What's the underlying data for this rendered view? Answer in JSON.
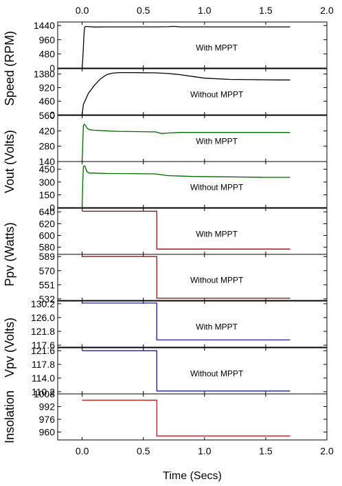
{
  "chart_data": {
    "type": "line",
    "xlabel": "Time (Secs)",
    "xlim": [
      -0.2,
      2.0
    ],
    "xticks": [
      0.0,
      0.5,
      1.0,
      1.5,
      2.0
    ],
    "xtick_labels": [
      "0.0",
      "0.5",
      "1.0",
      "1.5",
      "2.0"
    ],
    "ylabels": [
      {
        "text": "Speed (RPM)",
        "panels": [
          0,
          1
        ]
      },
      {
        "text": "Vout (Volts)",
        "panels": [
          2,
          3
        ]
      },
      {
        "text": "Ppv (Watts)",
        "panels": [
          4,
          5
        ]
      },
      {
        "text": "Vpv (Volts)",
        "panels": [
          6,
          7
        ]
      },
      {
        "text": "Insolation",
        "panels": [
          8
        ]
      }
    ],
    "panels": [
      {
        "annotation": "With MPPT",
        "ylim": [
          0,
          1560
        ],
        "yticks": [
          0,
          480,
          960,
          1440
        ],
        "ytick_labels": [
          "0",
          "480",
          "960",
          "1440"
        ],
        "color": "#000000",
        "x": [
          0.0,
          0.005,
          0.01,
          0.015,
          0.02,
          0.03,
          0.06,
          0.1,
          0.2,
          0.4,
          0.6,
          0.7,
          0.75,
          0.8,
          1.0,
          1.2,
          1.5,
          1.7
        ],
        "y": [
          0,
          300,
          700,
          1150,
          1380,
          1410,
          1400,
          1390,
          1395,
          1395,
          1395,
          1400,
          1410,
          1395,
          1395,
          1395,
          1395,
          1395
        ]
      },
      {
        "annotation": "Without MPPT",
        "ylim": [
          0,
          1560
        ],
        "yticks": [
          0,
          460,
          920,
          1380
        ],
        "ytick_labels": [
          "0",
          "460",
          "920",
          "1380"
        ],
        "color": "#000000",
        "x": [
          0.0,
          0.01,
          0.03,
          0.05,
          0.1,
          0.15,
          0.2,
          0.25,
          0.3,
          0.4,
          0.5,
          0.6,
          0.7,
          0.8,
          0.9,
          1.0,
          1.2,
          1.4,
          1.6,
          1.7
        ],
        "y": [
          0,
          350,
          530,
          720,
          1000,
          1220,
          1360,
          1410,
          1430,
          1430,
          1425,
          1420,
          1400,
          1360,
          1300,
          1240,
          1200,
          1190,
          1180,
          1180
        ]
      },
      {
        "annotation": "With MPPT",
        "ylim": [
          140,
          560
        ],
        "yticks": [
          140,
          280,
          420,
          560
        ],
        "ytick_labels": [
          "140",
          "280",
          "420",
          "560"
        ],
        "color": "#006400",
        "x": [
          0.0,
          0.005,
          0.01,
          0.02,
          0.04,
          0.06,
          0.1,
          0.2,
          0.3,
          0.5,
          0.6,
          0.65,
          0.7,
          0.8,
          1.0,
          1.2,
          1.5,
          1.7
        ],
        "y": [
          140,
          300,
          470,
          480,
          445,
          430,
          425,
          420,
          415,
          412,
          410,
          395,
          400,
          405,
          405,
          405,
          405,
          405
        ]
      },
      {
        "annotation": "Without MPPT",
        "ylim": [
          0,
          540
        ],
        "yticks": [
          0,
          150,
          300,
          450
        ],
        "ytick_labels": [
          "0",
          "150",
          "300",
          "450"
        ],
        "color": "#006400",
        "x": [
          0.0,
          0.005,
          0.01,
          0.02,
          0.04,
          0.06,
          0.1,
          0.2,
          0.4,
          0.6,
          0.7,
          0.9,
          1.2,
          1.5,
          1.7
        ],
        "y": [
          0,
          300,
          480,
          490,
          420,
          405,
          405,
          400,
          398,
          395,
          375,
          365,
          360,
          355,
          355
        ]
      },
      {
        "annotation": "With MPPT",
        "ylim": [
          568,
          646
        ],
        "yticks": [
          580,
          600,
          620,
          640
        ],
        "ytick_labels": [
          "580",
          "600",
          "620",
          "640"
        ],
        "color": "#8B1A1A",
        "x": [
          0.0,
          0.61,
          0.61,
          1.7
        ],
        "y": [
          641,
          641,
          577,
          577
        ]
      },
      {
        "annotation": "Without MPPT",
        "ylim": [
          530,
          592
        ],
        "yticks": [
          532,
          551,
          570,
          589
        ],
        "ytick_labels": [
          "532",
          "551",
          "570",
          "589"
        ],
        "color": "#8B1A1A",
        "x": [
          0.0,
          0.61,
          0.61,
          1.7
        ],
        "y": [
          589,
          589,
          533,
          533
        ]
      },
      {
        "annotation": "With MPPT",
        "ylim": [
          117.0,
          131.0
        ],
        "yticks": [
          117.6,
          121.8,
          126.0,
          130.2
        ],
        "ytick_labels": [
          "117.6",
          "121.8",
          "126.0",
          "130.2"
        ],
        "color": "#1F1F7A",
        "x": [
          0.0,
          0.61,
          0.61,
          1.7
        ],
        "y": [
          130.4,
          130.4,
          119.2,
          119.2
        ]
      },
      {
        "annotation": "Without MPPT",
        "ylim": [
          109.6,
          122.4
        ],
        "yticks": [
          110.2,
          114.0,
          117.8,
          121.6
        ],
        "ytick_labels": [
          "110.2",
          "114.0",
          "117.8",
          "121.6"
        ],
        "color": "#1F1F7A",
        "x": [
          0.0,
          0.61,
          0.61,
          1.7
        ],
        "y": [
          121.6,
          121.6,
          110.4,
          110.4
        ]
      },
      {
        "annotation": "",
        "ylim": [
          950,
          1008
        ],
        "yticks": [
          960,
          976,
          992,
          1008
        ],
        "ytick_labels": [
          "960",
          "976",
          "992",
          "1008"
        ],
        "color": "#B22222",
        "x": [
          0.0,
          0.61,
          0.61,
          1.7
        ],
        "y": [
          1000,
          1000,
          955,
          955
        ]
      }
    ]
  }
}
